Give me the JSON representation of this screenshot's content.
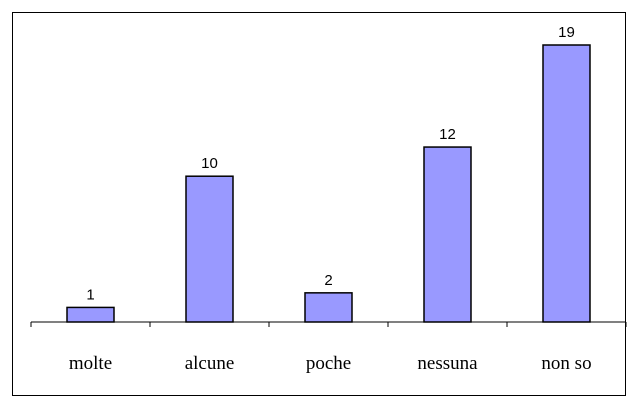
{
  "chart_data": {
    "type": "bar",
    "categories": [
      "molte",
      "alcune",
      "poche",
      "nessuna",
      "non so"
    ],
    "values": [
      1,
      10,
      2,
      12,
      19
    ],
    "title": "",
    "xlabel": "",
    "ylabel": "",
    "ylim": [
      0,
      19
    ],
    "grid": false,
    "legend": "none",
    "bar_color": "#9999ff"
  }
}
